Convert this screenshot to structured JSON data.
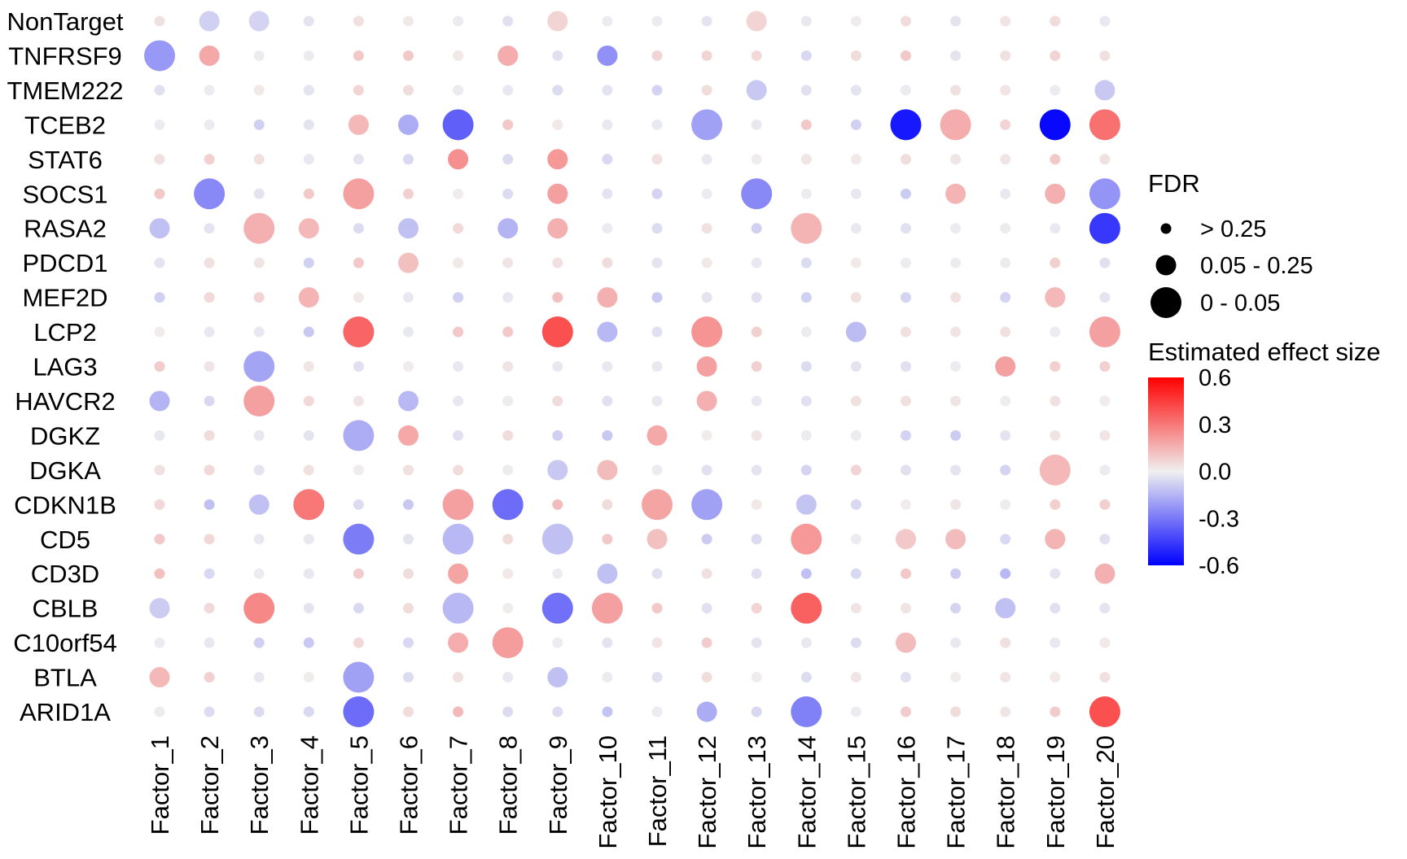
{
  "chart_data": {
    "type": "dot-heatmap",
    "rows": [
      "NonTarget",
      "TNFRSF9",
      "TMEM222",
      "TCEB2",
      "STAT6",
      "SOCS1",
      "RASA2",
      "PDCD1",
      "MEF2D",
      "LCP2",
      "LAG3",
      "HAVCR2",
      "DGKZ",
      "DGKA",
      "CDKN1B",
      "CD5",
      "CD3D",
      "CBLB",
      "C10orf54",
      "BTLA",
      "ARID1A"
    ],
    "columns": [
      "Factor_1",
      "Factor_2",
      "Factor_3",
      "Factor_4",
      "Factor_5",
      "Factor_6",
      "Factor_7",
      "Factor_8",
      "Factor_9",
      "Factor_10",
      "Factor_11",
      "Factor_12",
      "Factor_13",
      "Factor_14",
      "Factor_15",
      "Factor_16",
      "Factor_17",
      "Factor_18",
      "Factor_19",
      "Factor_20"
    ],
    "effect": [
      [
        0.04,
        -0.08,
        -0.07,
        -0.03,
        0.04,
        0.02,
        -0.01,
        -0.04,
        0.07,
        -0.01,
        -0.01,
        -0.03,
        0.07,
        -0.02,
        0.01,
        0.05,
        -0.03,
        0.03,
        0.05,
        -0.02
      ],
      [
        -0.22,
        0.18,
        -0.01,
        -0.01,
        0.1,
        0.1,
        0.02,
        0.17,
        -0.04,
        -0.24,
        0.07,
        0.07,
        0.06,
        -0.06,
        0.05,
        0.1,
        -0.03,
        0.04,
        0.07,
        0.04
      ],
      [
        -0.04,
        -0.01,
        0.02,
        -0.03,
        0.07,
        0.05,
        -0.01,
        -0.02,
        -0.05,
        -0.03,
        -0.07,
        0.05,
        -0.1,
        -0.04,
        -0.03,
        -0.01,
        0.04,
        0.03,
        -0.01,
        -0.1
      ],
      [
        -0.01,
        -0.01,
        -0.08,
        -0.03,
        0.14,
        -0.17,
        -0.36,
        0.1,
        0.02,
        -0.02,
        -0.02,
        -0.2,
        -0.02,
        0.1,
        -0.08,
        -0.54,
        0.17,
        0.07,
        -0.58,
        0.32
      ],
      [
        0.04,
        0.08,
        0.04,
        -0.02,
        -0.03,
        -0.06,
        0.24,
        -0.05,
        0.22,
        -0.06,
        0.04,
        -0.02,
        0.01,
        0.03,
        0.02,
        0.05,
        0.03,
        0.03,
        0.1,
        0.04
      ],
      [
        0.1,
        -0.26,
        -0.03,
        0.1,
        0.2,
        0.08,
        0.01,
        -0.05,
        0.2,
        -0.03,
        -0.07,
        -0.01,
        -0.26,
        -0.01,
        -0.02,
        -0.09,
        0.15,
        -0.02,
        0.16,
        -0.23
      ],
      [
        -0.12,
        -0.03,
        0.16,
        0.14,
        -0.05,
        -0.12,
        0.06,
        -0.15,
        0.16,
        -0.01,
        -0.05,
        0.04,
        -0.08,
        0.15,
        -0.02,
        -0.04,
        -0.01,
        -0.01,
        -0.02,
        -0.46
      ],
      [
        -0.03,
        0.04,
        0.03,
        -0.08,
        0.1,
        0.12,
        0.02,
        0.03,
        0.04,
        0.05,
        -0.03,
        0.02,
        -0.02,
        -0.05,
        0.02,
        -0.01,
        -0.01,
        -0.01,
        0.08,
        -0.04
      ],
      [
        -0.08,
        0.06,
        0.07,
        0.15,
        0.02,
        -0.02,
        -0.08,
        -0.02,
        0.12,
        0.16,
        -0.1,
        -0.03,
        -0.04,
        -0.08,
        0.04,
        -0.07,
        0.04,
        -0.07,
        0.14,
        -0.03
      ],
      [
        0.01,
        -0.02,
        -0.02,
        -0.1,
        0.35,
        -0.02,
        0.1,
        0.1,
        0.4,
        -0.14,
        -0.04,
        0.23,
        0.08,
        -0.01,
        -0.13,
        0.04,
        0.03,
        0.04,
        -0.01,
        0.2
      ],
      [
        0.09,
        0.03,
        -0.19,
        0.03,
        -0.04,
        0.01,
        -0.02,
        0.03,
        -0.02,
        -0.02,
        -0.02,
        0.2,
        0.08,
        -0.05,
        -0.03,
        -0.04,
        -0.01,
        0.2,
        0.08,
        0.08
      ],
      [
        -0.15,
        -0.06,
        0.2,
        0.06,
        0.03,
        -0.14,
        -0.02,
        -0.01,
        0.05,
        -0.04,
        -0.02,
        0.16,
        -0.02,
        -0.04,
        0.04,
        0.04,
        0.03,
        0.01,
        0.04,
        0.01
      ],
      [
        -0.02,
        0.05,
        -0.02,
        -0.03,
        -0.17,
        0.18,
        -0.04,
        0.05,
        -0.08,
        -0.1,
        0.18,
        0.01,
        0.03,
        -0.01,
        -0.01,
        -0.07,
        -0.09,
        -0.03,
        0.03,
        0.03
      ],
      [
        0.04,
        0.06,
        -0.03,
        0.04,
        0.01,
        0.04,
        0.05,
        -0.01,
        -0.1,
        0.13,
        -0.01,
        -0.04,
        -0.03,
        -0.07,
        0.07,
        -0.04,
        -0.03,
        -0.07,
        0.14,
        -0.01
      ],
      [
        0.06,
        -0.12,
        -0.12,
        0.3,
        -0.05,
        -0.1,
        0.2,
        -0.33,
        0.13,
        0.05,
        0.19,
        -0.2,
        0.02,
        -0.11,
        -0.06,
        0.01,
        0.03,
        0.01,
        0.08,
        0.08
      ],
      [
        0.1,
        0.06,
        -0.02,
        -0.02,
        -0.29,
        -0.03,
        -0.14,
        0.05,
        -0.12,
        0.1,
        0.12,
        -0.09,
        -0.05,
        0.22,
        -0.01,
        0.1,
        0.13,
        -0.06,
        0.15,
        -0.04
      ],
      [
        0.12,
        -0.06,
        -0.01,
        -0.02,
        0.09,
        0.05,
        0.19,
        0.02,
        -0.01,
        -0.12,
        -0.04,
        0.04,
        -0.04,
        -0.12,
        -0.06,
        0.1,
        -0.09,
        -0.14,
        -0.03,
        0.16
      ],
      [
        -0.09,
        0.06,
        0.26,
        -0.03,
        -0.06,
        0.05,
        -0.14,
        0.01,
        -0.32,
        0.2,
        0.1,
        -0.04,
        0.07,
        0.36,
        0.03,
        0.03,
        -0.07,
        -0.12,
        -0.04,
        -0.03
      ],
      [
        -0.01,
        -0.02,
        -0.08,
        -0.1,
        0.06,
        -0.06,
        0.17,
        0.21,
        -0.01,
        -0.03,
        0.03,
        0.09,
        -0.03,
        -0.02,
        -0.05,
        0.13,
        -0.02,
        0.04,
        -0.02,
        0.02
      ],
      [
        0.14,
        0.08,
        -0.02,
        0.01,
        -0.2,
        -0.05,
        0.04,
        -0.02,
        -0.12,
        -0.01,
        -0.04,
        0.05,
        0.01,
        -0.05,
        0.03,
        -0.04,
        0.01,
        0.03,
        0.02,
        0.04
      ],
      [
        -0.01,
        -0.05,
        -0.05,
        -0.06,
        -0.33,
        0.05,
        0.14,
        -0.05,
        -0.05,
        -0.11,
        -0.01,
        -0.17,
        -0.06,
        -0.28,
        -0.01,
        0.09,
        0.05,
        0.03,
        0.09,
        0.4
      ]
    ],
    "fdr_class": [
      [
        0,
        1,
        1,
        0,
        0,
        0,
        0,
        0,
        1,
        0,
        0,
        0,
        1,
        0,
        0,
        0,
        0,
        0,
        0,
        0
      ],
      [
        2,
        1,
        0,
        0,
        0,
        0,
        0,
        1,
        0,
        1,
        0,
        0,
        0,
        0,
        0,
        0,
        0,
        0,
        0,
        0
      ],
      [
        0,
        0,
        0,
        0,
        0,
        0,
        0,
        0,
        0,
        0,
        0,
        0,
        1,
        0,
        0,
        0,
        0,
        0,
        0,
        1
      ],
      [
        0,
        0,
        0,
        0,
        1,
        1,
        2,
        0,
        0,
        0,
        0,
        2,
        0,
        0,
        0,
        2,
        2,
        0,
        2,
        2
      ],
      [
        0,
        0,
        0,
        0,
        0,
        0,
        1,
        0,
        1,
        0,
        0,
        0,
        0,
        0,
        0,
        0,
        0,
        0,
        0,
        0
      ],
      [
        0,
        2,
        0,
        0,
        2,
        0,
        0,
        0,
        1,
        0,
        0,
        0,
        2,
        0,
        0,
        0,
        1,
        0,
        1,
        2
      ],
      [
        1,
        0,
        2,
        1,
        0,
        1,
        0,
        1,
        1,
        0,
        0,
        0,
        0,
        2,
        0,
        0,
        0,
        0,
        0,
        2
      ],
      [
        0,
        0,
        0,
        0,
        0,
        1,
        0,
        0,
        0,
        0,
        0,
        0,
        0,
        0,
        0,
        0,
        0,
        0,
        0,
        0
      ],
      [
        0,
        0,
        0,
        1,
        0,
        0,
        0,
        0,
        0,
        1,
        0,
        0,
        0,
        0,
        0,
        0,
        0,
        0,
        1,
        0
      ],
      [
        0,
        0,
        0,
        0,
        2,
        0,
        0,
        0,
        2,
        1,
        0,
        2,
        0,
        0,
        1,
        0,
        0,
        0,
        0,
        2
      ],
      [
        0,
        0,
        2,
        0,
        0,
        0,
        0,
        0,
        0,
        0,
        0,
        1,
        0,
        0,
        0,
        0,
        0,
        1,
        0,
        0
      ],
      [
        1,
        0,
        2,
        0,
        0,
        1,
        0,
        0,
        0,
        0,
        0,
        1,
        0,
        0,
        0,
        0,
        0,
        0,
        0,
        0
      ],
      [
        0,
        0,
        0,
        0,
        2,
        1,
        0,
        0,
        0,
        0,
        1,
        0,
        0,
        0,
        0,
        0,
        0,
        0,
        0,
        0
      ],
      [
        0,
        0,
        0,
        0,
        0,
        0,
        0,
        0,
        1,
        1,
        0,
        0,
        0,
        0,
        0,
        0,
        0,
        0,
        2,
        0
      ],
      [
        0,
        0,
        1,
        2,
        0,
        0,
        2,
        2,
        0,
        0,
        2,
        2,
        0,
        1,
        0,
        0,
        0,
        0,
        0,
        0
      ],
      [
        0,
        0,
        0,
        0,
        2,
        0,
        2,
        0,
        2,
        0,
        1,
        0,
        0,
        2,
        0,
        1,
        1,
        0,
        1,
        0
      ],
      [
        0,
        0,
        0,
        0,
        0,
        0,
        1,
        0,
        0,
        1,
        0,
        0,
        0,
        0,
        0,
        0,
        0,
        0,
        0,
        1
      ],
      [
        1,
        0,
        2,
        0,
        0,
        0,
        2,
        0,
        2,
        2,
        0,
        0,
        0,
        2,
        0,
        0,
        0,
        1,
        0,
        0
      ],
      [
        0,
        0,
        0,
        0,
        0,
        0,
        1,
        2,
        0,
        0,
        0,
        0,
        0,
        0,
        0,
        1,
        0,
        0,
        0,
        0
      ],
      [
        1,
        0,
        0,
        0,
        2,
        0,
        0,
        0,
        1,
        0,
        0,
        0,
        0,
        0,
        0,
        0,
        0,
        0,
        0,
        0
      ],
      [
        0,
        0,
        0,
        0,
        2,
        0,
        0,
        0,
        0,
        0,
        0,
        1,
        0,
        2,
        0,
        0,
        0,
        0,
        0,
        2
      ]
    ],
    "size_legend": {
      "title": "FDR",
      "items": [
        "> 0.25",
        "0.05 - 0.25",
        "0 - 0.05"
      ]
    },
    "color_legend": {
      "title": "Estimated effect size",
      "range": [
        -0.6,
        0.6
      ],
      "ticks": [
        "0.6",
        "0.3",
        "0.0",
        "-0.3",
        "-0.6"
      ],
      "low_color": "#0000ff",
      "mid_color": "#f0f0f0",
      "high_color": "#ff0000"
    }
  }
}
